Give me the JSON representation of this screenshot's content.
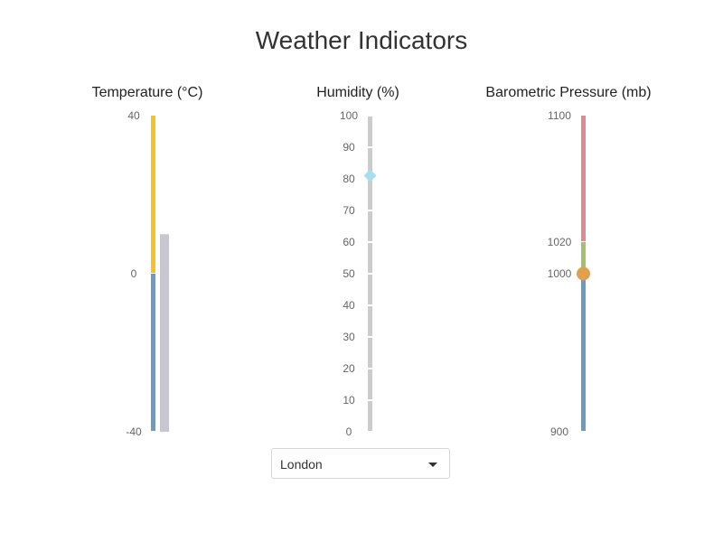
{
  "page": {
    "title": "Weather Indicators"
  },
  "location": {
    "selected": "London"
  },
  "colors": {
    "cold": "#6b9dc2",
    "warm": "#f5c324",
    "current_temp": "#c8c6d0",
    "track": "#cccccc",
    "humidity_marker": "#a8dff0",
    "low_pressure": "#6b9dc2",
    "normal_pressure": "#a3c26b",
    "high_pressure": "#e08994",
    "pressure_marker": "#e0a050"
  },
  "chart_data": [
    {
      "type": "bullet",
      "title": "Temperature (°C)",
      "ticks": [
        40,
        0,
        -40
      ],
      "range": [
        -40,
        40
      ],
      "bands": [
        {
          "from": -40,
          "to": 0,
          "color": "cold"
        },
        {
          "from": 0,
          "to": 40,
          "color": "warm"
        }
      ],
      "value": 10
    },
    {
      "type": "bullet",
      "title": "Humidity (%)",
      "ticks": [
        100,
        90,
        80,
        70,
        60,
        50,
        40,
        30,
        20,
        10,
        0
      ],
      "range": [
        0,
        100
      ],
      "value": 81,
      "marker": "diamond"
    },
    {
      "type": "bullet",
      "title": "Barometric Pressure (mb)",
      "ticks": [
        1100,
        1020,
        1000,
        900
      ],
      "range": [
        900,
        1100
      ],
      "bands": [
        {
          "from": 900,
          "to": 1000,
          "color": "low_pressure"
        },
        {
          "from": 1000,
          "to": 1020,
          "color": "normal_pressure"
        },
        {
          "from": 1020,
          "to": 1100,
          "color": "high_pressure"
        }
      ],
      "value": 1000,
      "marker": "circle"
    }
  ]
}
